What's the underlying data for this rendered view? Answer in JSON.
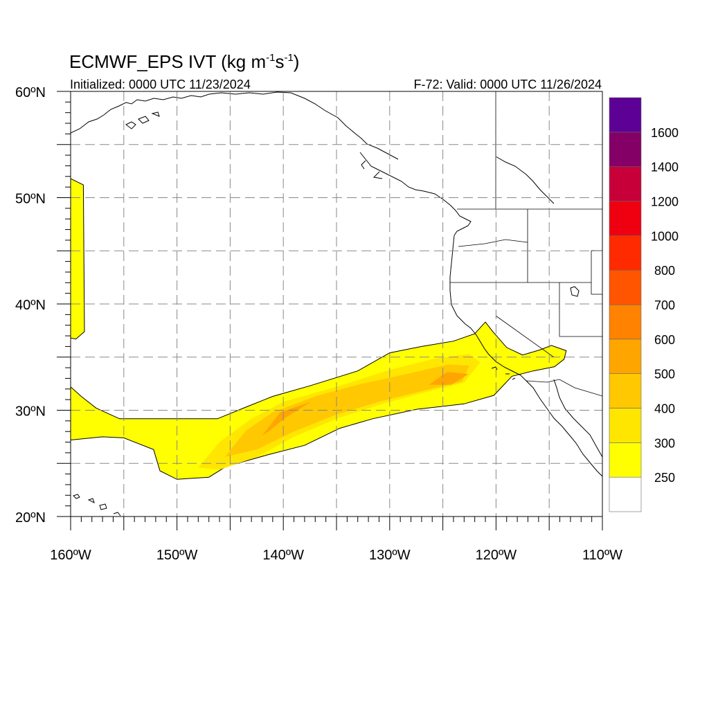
{
  "title": {
    "prefix": "ECMWF_EPS IVT (kg m",
    "exp1": "-1",
    "mid": "s",
    "exp2": "-1",
    "suffix": ")"
  },
  "subtitle_left": "Initialized: 0000 UTC 11/23/2024",
  "subtitle_right": "F-72: Valid: 0000 UTC 11/26/2024",
  "map_extent": {
    "lon": [
      -160,
      -110
    ],
    "lat": [
      20,
      60
    ]
  },
  "grid": {
    "dashed": true,
    "lon_step": 5,
    "lat_step": 5
  },
  "lat_labels": [
    {
      "lat": 60,
      "label": "60ºN"
    },
    {
      "lat": 50,
      "label": "50ºN"
    },
    {
      "lat": 40,
      "label": "40ºN"
    },
    {
      "lat": 30,
      "label": "30ºN"
    },
    {
      "lat": 20,
      "label": "20ºN"
    }
  ],
  "lon_labels": [
    {
      "lon": -160,
      "label": "160ºW"
    },
    {
      "lon": -150,
      "label": "150ºW"
    },
    {
      "lon": -140,
      "label": "140ºW"
    },
    {
      "lon": -130,
      "label": "130ºW"
    },
    {
      "lon": -120,
      "label": "120ºW"
    },
    {
      "lon": -110,
      "label": "110ºW"
    }
  ],
  "colorbar": {
    "units": "kg m-1 s-1",
    "levels": [
      {
        "color": "#ffffff"
      },
      {
        "label": "250",
        "color": "#ffff00"
      },
      {
        "label": "300",
        "color": "#ffe600"
      },
      {
        "label": "400",
        "color": "#ffc800"
      },
      {
        "label": "500",
        "color": "#ffa500"
      },
      {
        "label": "600",
        "color": "#ff8200"
      },
      {
        "label": "700",
        "color": "#ff5500"
      },
      {
        "label": "800",
        "color": "#ff2a00"
      },
      {
        "label": "1000",
        "color": "#ee0010"
      },
      {
        "label": "1200",
        "color": "#c8003a"
      },
      {
        "label": "1400",
        "color": "#840066"
      },
      {
        "label": "1600",
        "color": "#5c0096"
      }
    ]
  },
  "ivt_regions": [
    {
      "name": "west-edge-plume",
      "level": 250,
      "points": [
        [
          -160,
          51.8
        ],
        [
          -158.8,
          51.2
        ],
        [
          -158.7,
          37.4
        ],
        [
          -159.5,
          36.7
        ],
        [
          -160,
          36.8
        ]
      ]
    },
    {
      "name": "main-atmospheric-river",
      "level": 250,
      "points": [
        [
          -160,
          32.2
        ],
        [
          -159,
          31.3
        ],
        [
          -157.6,
          30.2
        ],
        [
          -155.4,
          29.2
        ],
        [
          -150.8,
          29.2
        ],
        [
          -146.2,
          29.2
        ],
        [
          -143.5,
          30.3
        ],
        [
          -141,
          31.3
        ],
        [
          -137.5,
          32.3
        ],
        [
          -133,
          33.7
        ],
        [
          -130,
          35.4
        ],
        [
          -127,
          36
        ],
        [
          -124,
          36.5
        ],
        [
          -122,
          37.2
        ],
        [
          -121,
          38.3
        ],
        [
          -120.3,
          37.4
        ],
        [
          -119,
          35.9
        ],
        [
          -117.5,
          35.2
        ],
        [
          -115.8,
          35.7
        ],
        [
          -114.8,
          36.1
        ],
        [
          -113.4,
          35.6
        ],
        [
          -113.6,
          34.8
        ],
        [
          -114.5,
          34.1
        ],
        [
          -116.5,
          33.7
        ],
        [
          -118.5,
          33.2
        ],
        [
          -120.2,
          31.4
        ],
        [
          -123,
          30.6
        ],
        [
          -127.4,
          30.1
        ],
        [
          -131.6,
          29.2
        ],
        [
          -134.7,
          28.3
        ],
        [
          -138,
          26.7
        ],
        [
          -141.5,
          25.8
        ],
        [
          -145.4,
          24.7
        ],
        [
          -147,
          23.7
        ],
        [
          -150,
          23.5
        ],
        [
          -151.6,
          24.3
        ],
        [
          -152.2,
          26.3
        ],
        [
          -155,
          27.4
        ],
        [
          -157,
          27.5
        ],
        [
          -160,
          27.2
        ]
      ]
    },
    {
      "name": "river-core-300",
      "level": 300,
      "points": [
        [
          -148,
          24.6
        ],
        [
          -146,
          27
        ],
        [
          -143,
          29.2
        ],
        [
          -140,
          30.8
        ],
        [
          -135,
          32.2
        ],
        [
          -130,
          33.8
        ],
        [
          -126,
          34.8
        ],
        [
          -122.5,
          35.3
        ],
        [
          -121.5,
          34.5
        ],
        [
          -123,
          32.6
        ],
        [
          -127,
          31.6
        ],
        [
          -131,
          30.5
        ],
        [
          -135,
          29.2
        ],
        [
          -139,
          27.5
        ],
        [
          -142.5,
          25.6
        ],
        [
          -146,
          24.4
        ]
      ]
    },
    {
      "name": "river-core-400",
      "level": 400,
      "points": [
        [
          -145.5,
          25.6
        ],
        [
          -143.5,
          28.1
        ],
        [
          -141,
          29.8
        ],
        [
          -137,
          31.3
        ],
        [
          -133,
          32.4
        ],
        [
          -128,
          33.5
        ],
        [
          -124.5,
          34.3
        ],
        [
          -122.5,
          34.2
        ],
        [
          -123.2,
          32.7
        ],
        [
          -127,
          31.8
        ],
        [
          -131,
          30.8
        ],
        [
          -135,
          29.6
        ],
        [
          -139,
          28
        ],
        [
          -142.5,
          26.3
        ]
      ]
    },
    {
      "name": "river-core-500",
      "level": 500,
      "points": [
        [
          -142,
          27.6
        ],
        [
          -140.3,
          29.8
        ],
        [
          -137.4,
          30.8
        ],
        [
          -139.8,
          29.3
        ],
        [
          -141.4,
          28
        ]
      ]
    },
    {
      "name": "river-core-500-east",
      "level": 500,
      "points": [
        [
          -126.3,
          32.4
        ],
        [
          -124.6,
          33.6
        ],
        [
          -122.6,
          33.4
        ],
        [
          -124.2,
          32.4
        ]
      ]
    }
  ]
}
